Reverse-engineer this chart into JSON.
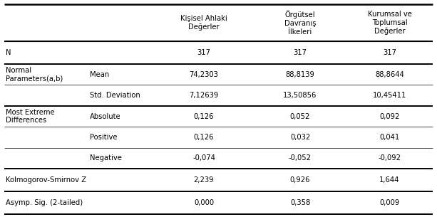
{
  "col_headers": [
    "Kişisel Ahlaki\nDeğerler",
    "Örgütsel\nDavranış\nİlkeleri",
    "Kurumsal ve\nToplumsal\nDeğerler"
  ],
  "rows": [
    {
      "left_label": "N",
      "sub_label": "",
      "values": [
        "317",
        "317",
        "317"
      ],
      "bottom_thick": true
    },
    {
      "left_label": "Normal\nParameters(a,b)",
      "sub_label": "Mean",
      "values": [
        "74,2303",
        "88,8139",
        "88,8644"
      ],
      "bottom_thick": false
    },
    {
      "left_label": "",
      "sub_label": "Std. Deviation",
      "values": [
        "7,12639",
        "13,50856",
        "10,45411"
      ],
      "bottom_thick": true
    },
    {
      "left_label": "Most Extreme\nDifferences",
      "sub_label": "Absolute",
      "values": [
        "0,126",
        "0,052",
        "0,092"
      ],
      "bottom_thick": false
    },
    {
      "left_label": "",
      "sub_label": "Positive",
      "values": [
        "0,126",
        "0,032",
        "0,041"
      ],
      "bottom_thick": false
    },
    {
      "left_label": "",
      "sub_label": "Negative",
      "values": [
        "-0,074",
        "-0,052",
        "-0,092"
      ],
      "bottom_thick": true
    },
    {
      "left_label": "Kolmogorov-Smirnov Z",
      "sub_label": "",
      "values": [
        "2,239",
        "0,926",
        "1,644"
      ],
      "bottom_thick": true
    },
    {
      "left_label": "Asymp. Sig. (2-tailed)",
      "sub_label": "",
      "values": [
        "0,000",
        "0,358",
        "0,009"
      ],
      "bottom_thick": true
    }
  ],
  "font_size": 7.2,
  "bg_color": "#ffffff",
  "text_color": "#000000"
}
